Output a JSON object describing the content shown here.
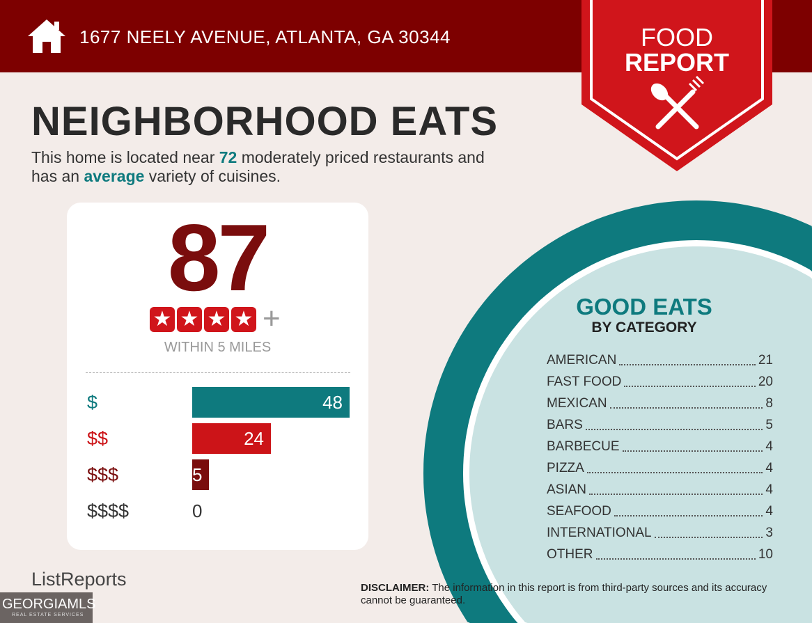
{
  "header": {
    "address": "1677 NEELY AVENUE, ATLANTA, GA 30344",
    "icon": "home-icon"
  },
  "badge": {
    "line1": "FOOD",
    "line2": "REPORT",
    "icon": "fork-spoon-icon"
  },
  "title": "NEIGHBORHOOD EATS",
  "subtitle": {
    "pre": "This home is located near ",
    "count": "72",
    "mid": " moderately priced restaurants and",
    "line2_pre": "has an ",
    "variety": "average",
    "post": " variety of cuisines."
  },
  "score": {
    "value": "87",
    "stars": 4,
    "plus": "+",
    "radius": "WITHIN 5 MILES"
  },
  "prices": [
    {
      "label": "$",
      "value": 48,
      "color": "#0e7a7e"
    },
    {
      "label": "$$",
      "value": 24,
      "color": "#cc1418"
    },
    {
      "label": "$$$",
      "value": 5,
      "color": "#7a0d0d"
    },
    {
      "label": "$$$$",
      "value": 0,
      "color": "#333333"
    }
  ],
  "categories": {
    "title": "GOOD EATS",
    "subtitle": "BY CATEGORY",
    "items": [
      {
        "name": "AMERICAN",
        "count": "21"
      },
      {
        "name": "FAST FOOD",
        "count": "20"
      },
      {
        "name": "MEXICAN",
        "count": "8"
      },
      {
        "name": "BARS",
        "count": "5"
      },
      {
        "name": "BARBECUE",
        "count": "4"
      },
      {
        "name": "PIZZA",
        "count": "4"
      },
      {
        "name": "ASIAN",
        "count": "4"
      },
      {
        "name": "SEAFOOD",
        "count": "4"
      },
      {
        "name": "INTERNATIONAL",
        "count": "3"
      },
      {
        "name": "OTHER",
        "count": "10"
      }
    ]
  },
  "footer": {
    "brand": "ListReports",
    "mls": "GEORGIAMLS",
    "mls_sub": "REAL ESTATE SERVICES",
    "disclaimer_label": "DISCLAIMER:",
    "disclaimer": " The information in this report is from third-party sources and its accuracy cannot be guaranteed."
  }
}
